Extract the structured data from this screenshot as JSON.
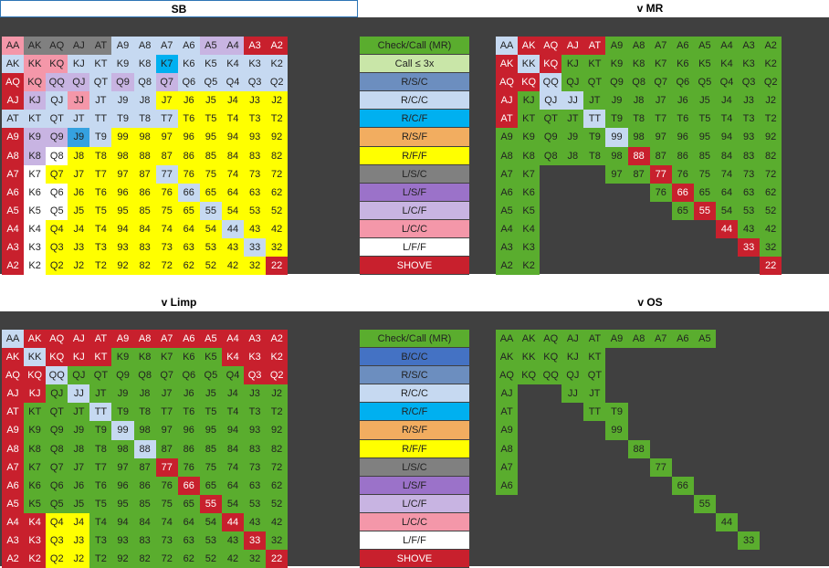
{
  "headers": {
    "sb": "SB",
    "vmr": "v MR",
    "vlimp": "v Limp",
    "vos": "v OS"
  },
  "colors": {
    "R": "#c8202d",
    "G": "#5aad2e",
    "Y": "#ffff00",
    "L": "#c6d9f1",
    "V": "#c8b4e2",
    "P": "#f497a9",
    "K": "#808080",
    "W": "#ffffff",
    "C": "#00b0f0",
    "Z": "#35a1e0",
    "O": "#f2ad60",
    "B": "#4472c4",
    "M": "#9b72c9",
    "S": "#6c8ebf",
    "A": "#bee89a",
    "LG": "#c9e6a8",
    "E": "transparent"
  },
  "hands": [
    [
      "AA",
      "AK",
      "AQ",
      "AJ",
      "AT",
      "A9",
      "A8",
      "A7",
      "A6",
      "A5",
      "A4",
      "A3",
      "A2"
    ],
    [
      "AK",
      "KK",
      "KQ",
      "KJ",
      "KT",
      "K9",
      "K8",
      "K7",
      "K6",
      "K5",
      "K4",
      "K3",
      "K2"
    ],
    [
      "AQ",
      "KQ",
      "QQ",
      "QJ",
      "QT",
      "Q9",
      "Q8",
      "Q7",
      "Q6",
      "Q5",
      "Q4",
      "Q3",
      "Q2"
    ],
    [
      "AJ",
      "KJ",
      "QJ",
      "JJ",
      "JT",
      "J9",
      "J8",
      "J7",
      "J6",
      "J5",
      "J4",
      "J3",
      "J2"
    ],
    [
      "AT",
      "KT",
      "QT",
      "JT",
      "TT",
      "T9",
      "T8",
      "T7",
      "T6",
      "T5",
      "T4",
      "T3",
      "T2"
    ],
    [
      "A9",
      "K9",
      "Q9",
      "J9",
      "T9",
      "99",
      "98",
      "97",
      "96",
      "95",
      "94",
      "93",
      "92"
    ],
    [
      "A8",
      "K8",
      "Q8",
      "J8",
      "T8",
      "98",
      "88",
      "87",
      "86",
      "85",
      "84",
      "83",
      "82"
    ],
    [
      "A7",
      "K7",
      "Q7",
      "J7",
      "T7",
      "97",
      "87",
      "77",
      "76",
      "75",
      "74",
      "73",
      "72"
    ],
    [
      "A6",
      "K6",
      "Q6",
      "J6",
      "T6",
      "96",
      "86",
      "76",
      "66",
      "65",
      "64",
      "63",
      "62"
    ],
    [
      "A5",
      "K5",
      "Q5",
      "J5",
      "T5",
      "95",
      "85",
      "75",
      "65",
      "55",
      "54",
      "53",
      "52"
    ],
    [
      "A4",
      "K4",
      "Q4",
      "J4",
      "T4",
      "94",
      "84",
      "74",
      "64",
      "54",
      "44",
      "43",
      "42"
    ],
    [
      "A3",
      "K3",
      "Q3",
      "J3",
      "T3",
      "93",
      "83",
      "73",
      "63",
      "53",
      "43",
      "33",
      "32"
    ],
    [
      "A2",
      "K2",
      "Q2",
      "J2",
      "T2",
      "92",
      "82",
      "72",
      "62",
      "52",
      "42",
      "32",
      "22"
    ]
  ],
  "grids": {
    "sb": [
      "P K K K K L L L L V V R R",
      "L P P L L L L C L L L L L",
      "R P V V L V L V L L L L L",
      "R V L P L L L Y Y Y Y Y Y",
      "L L L L L L L L Y Y Y Y Y",
      "R V V Z L Y Y Y Y Y Y Y Y",
      "R V W Y Y Y Y Y Y Y Y Y Y",
      "R W Y Y Y Y Y L Y Y Y Y Y",
      "R W W Y Y Y Y Y L Y Y Y Y",
      "R W W Y Y Y Y Y Y L Y Y Y",
      "R W Y Y Y Y Y Y Y Y L Y Y",
      "R W Y Y Y Y Y Y Y Y Y L Y",
      "R W Y Y Y Y Y Y Y Y Y Y R"
    ],
    "vmr": [
      "L R R R R G G G G G G G G",
      "R L R G G G G G G G G G G",
      "R R L G G G G G G G G G G",
      "R G L L G G G G G G G G G",
      "R G G G L G G G G G G G G",
      "G G G G G L G G G G G G G",
      "G G G G G G R G G G G G G",
      "G G E E E G G R G G G G G",
      "G G E E E E E G R G G G G",
      "G G E E E E E E G R G G G",
      "G G E E E E E E E E R G G",
      "G G E E E E E E E E E R G",
      "G G E E E E E E E E E E R"
    ],
    "vlimp": [
      "L R R R R R R R R R R R R",
      "R L R R R G G G G G R R R",
      "R R L G G G G G G G G R R",
      "R R G L G G G G G G G G G",
      "R G G G L G G G G G G G G",
      "R G G G G L G G G G G G G",
      "R G G G G G L G G G G G G",
      "R G G G G G G R G G G G G",
      "R G G G G G G G R G G G G",
      "R G G G G G G G G R G G G",
      "R R Y Y G G G G G G R G G",
      "R R Y Y G G G G G G G R G",
      "R R Y Y G G G G G G G G R"
    ],
    "vos": [
      "G G G G G G G G G G E E E",
      "G G G G G E E E E E E E E",
      "G G G G G E E E E E E E E",
      "G E E G G E E E E E E E E",
      "G E E E G G E E E E E E E",
      "G E E E E G E E E E E E E",
      "G E E E E E G E E E E E E",
      "G E E E E E E G E E E E E",
      "G E E E E E E E G E E E E",
      "E E E E E E E E E G E E E",
      "E E E E E E E E E E G E E",
      "E E E E E E E E E E E G E",
      "E E E E E E E E E E E E E"
    ]
  },
  "legend_top": [
    {
      "label": "Check/Call (MR)",
      "color": "G"
    },
    {
      "label": "Call ≤ 3x",
      "color": "LG"
    },
    {
      "label": "R/S/C",
      "color": "S"
    },
    {
      "label": "R/C/C",
      "color": "L"
    },
    {
      "label": "R/C/F",
      "color": "C"
    },
    {
      "label": "R/S/F",
      "color": "O"
    },
    {
      "label": "R/F/F",
      "color": "Y"
    },
    {
      "label": "L/S/C",
      "color": "K"
    },
    {
      "label": "L/S/F",
      "color": "M"
    },
    {
      "label": "L/C/F",
      "color": "V"
    },
    {
      "label": "L/C/C",
      "color": "P"
    },
    {
      "label": "L/F/F",
      "color": "W"
    },
    {
      "label": "SHOVE",
      "color": "R"
    }
  ],
  "legend_bottom": [
    {
      "label": "Check/Call (MR)",
      "color": "G"
    },
    {
      "label": "B/C/C",
      "color": "B"
    },
    {
      "label": "R/S/C",
      "color": "S"
    },
    {
      "label": "R/C/C",
      "color": "L"
    },
    {
      "label": "R/C/F",
      "color": "C"
    },
    {
      "label": "R/S/F",
      "color": "O"
    },
    {
      "label": "R/F/F",
      "color": "Y"
    },
    {
      "label": "L/S/C",
      "color": "K"
    },
    {
      "label": "L/S/F",
      "color": "M"
    },
    {
      "label": "L/C/F",
      "color": "V"
    },
    {
      "label": "L/C/C",
      "color": "P"
    },
    {
      "label": "L/F/F",
      "color": "W"
    },
    {
      "label": "SHOVE",
      "color": "R"
    }
  ]
}
